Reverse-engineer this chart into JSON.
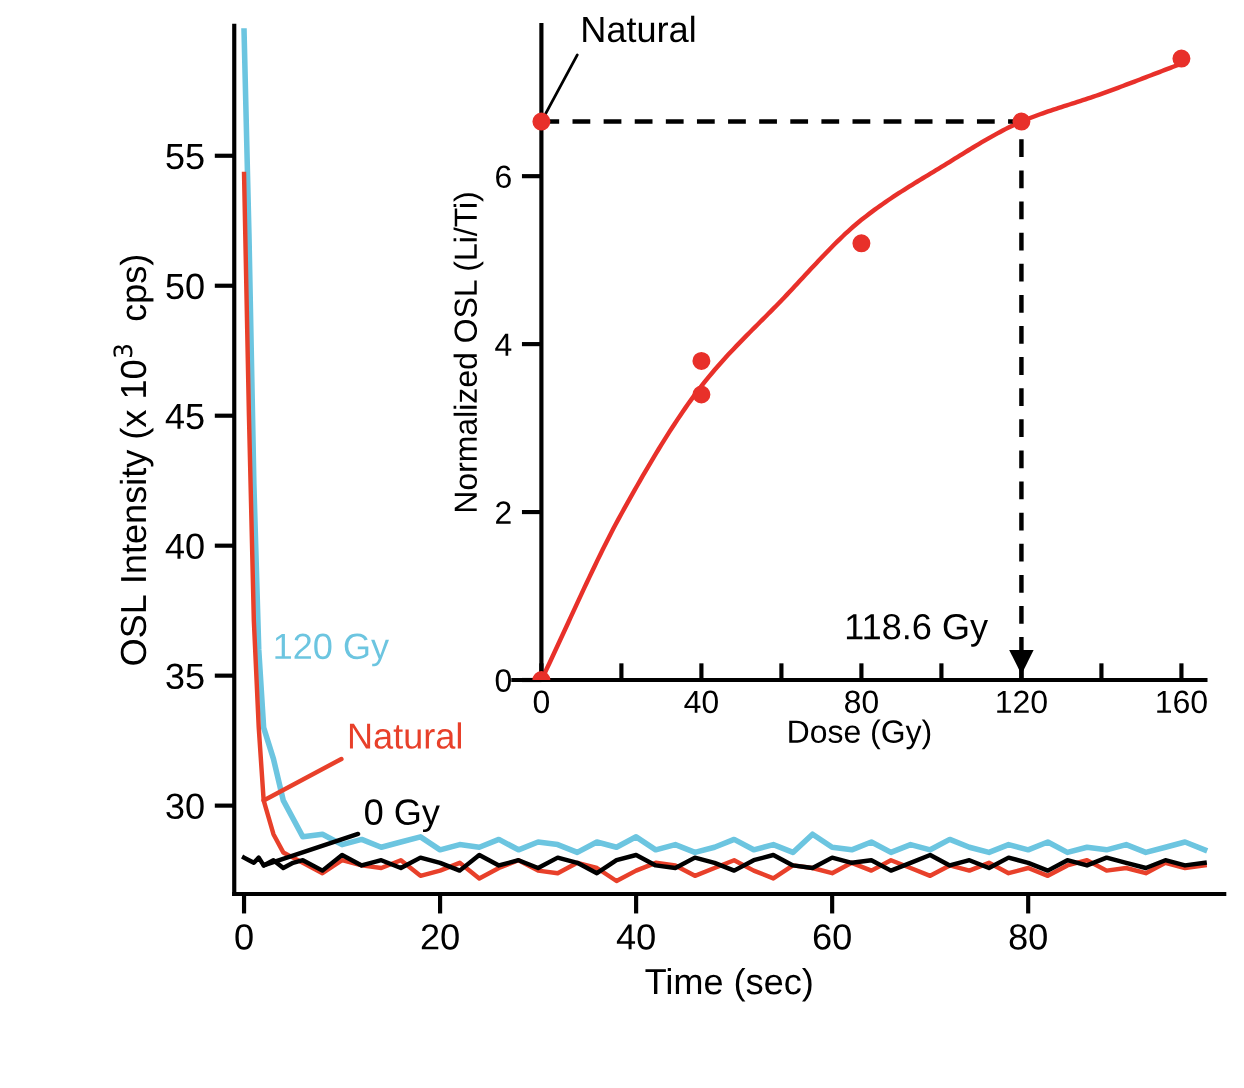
{
  "chart_data": [
    {
      "type": "line",
      "xlabel": "Time (sec)",
      "ylabel": "OSL Intensity (x 10$^{3}$  cps)",
      "x": [
        0,
        0.5,
        1,
        1.5,
        2,
        3,
        4,
        5,
        6,
        8,
        10,
        12,
        14,
        16,
        18,
        20,
        22,
        24,
        26,
        28,
        30,
        32,
        34,
        36,
        38,
        40,
        42,
        44,
        46,
        48,
        50,
        52,
        54,
        56,
        58,
        60,
        62,
        64,
        66,
        68,
        70,
        72,
        74,
        76,
        78,
        80,
        82,
        84,
        86,
        88,
        90,
        92,
        94,
        96,
        98
      ],
      "series": [
        {
          "name": "120 Gy",
          "color": "#6cc5e0",
          "values": [
            59.8,
            52,
            42.4,
            36,
            33,
            31.8,
            30.2,
            29.5,
            28.8,
            28.9,
            28.5,
            28.7,
            28.4,
            28.6,
            28.8,
            28.3,
            28.5,
            28.4,
            28.7,
            28.3,
            28.6,
            28.5,
            28.2,
            28.6,
            28.4,
            28.8,
            28.3,
            28.5,
            28.2,
            28.4,
            28.7,
            28.3,
            28.5,
            28.2,
            28.9,
            28.4,
            28.3,
            28.6,
            28.2,
            28.5,
            28.3,
            28.7,
            28.4,
            28.2,
            28.5,
            28.3,
            28.6,
            28.2,
            28.4,
            28.3,
            28.5,
            28.2,
            28.4,
            28.6,
            28.3
          ]
        },
        {
          "name": "Natural",
          "color": "#e8402a",
          "values": [
            54.3,
            45,
            37.1,
            33,
            30.2,
            28.9,
            28.2,
            28.0,
            27.8,
            27.4,
            27.9,
            27.7,
            27.6,
            27.9,
            27.3,
            27.5,
            27.8,
            27.2,
            27.6,
            27.9,
            27.5,
            27.4,
            27.8,
            27.6,
            27.1,
            27.5,
            27.8,
            27.7,
            27.3,
            27.6,
            27.9,
            27.5,
            27.2,
            27.7,
            27.6,
            27.4,
            27.8,
            27.5,
            27.9,
            27.6,
            27.3,
            27.7,
            27.5,
            27.8,
            27.4,
            27.6,
            27.3,
            27.7,
            27.9,
            27.5,
            27.6,
            27.4,
            27.8,
            27.6,
            27.7
          ]
        },
        {
          "name": "0 Gy",
          "color": "#000000",
          "values": [
            28.0,
            27.9,
            27.8,
            28.0,
            27.7,
            27.9,
            27.6,
            27.8,
            27.9,
            27.5,
            28.1,
            27.7,
            27.9,
            27.6,
            28.0,
            27.8,
            27.5,
            28.1,
            27.7,
            27.9,
            27.6,
            28.0,
            27.8,
            27.4,
            27.9,
            28.1,
            27.7,
            27.6,
            28.0,
            27.8,
            27.5,
            27.9,
            28.1,
            27.7,
            27.6,
            28.0,
            27.8,
            27.9,
            27.5,
            27.8,
            28.1,
            27.7,
            27.9,
            27.6,
            28.0,
            27.8,
            27.5,
            27.9,
            27.7,
            28.0,
            27.8,
            27.6,
            27.9,
            27.7,
            27.8
          ]
        }
      ],
      "xlim": [
        -1,
        100
      ],
      "ylim": [
        26.6,
        60
      ],
      "xticks": [
        0,
        20,
        40,
        60,
        80
      ],
      "yticks": [
        30,
        35,
        40,
        45,
        50,
        55
      ],
      "grid": false,
      "legend": false
    },
    {
      "type": "scatter",
      "xlabel": "Dose (Gy)",
      "ylabel": "Normalized OSL (Li/Ti)",
      "series": [
        {
          "type": "scatter",
          "color": "#e8302a",
          "marker": "circle",
          "x": [
            0,
            0,
            40,
            40,
            80,
            120,
            160
          ],
          "values": [
            0,
            6.65,
            3.8,
            3.4,
            5.2,
            6.65,
            7.4
          ]
        },
        {
          "type": "line",
          "color": "#e8302a",
          "x": [
            0,
            20,
            40,
            60,
            80,
            100,
            120,
            140,
            160
          ],
          "values": [
            0,
            1.98,
            3.5,
            4.52,
            5.48,
            6.11,
            6.65,
            6.98,
            7.34
          ]
        },
        {
          "type": "line",
          "color": "#000000",
          "line_style": "dashed",
          "x": [
            0,
            120,
            120
          ],
          "values": [
            6.65,
            6.65,
            0
          ]
        }
      ],
      "annotations": [
        {
          "text": "Natural",
          "x": 0,
          "y": 6.65
        },
        {
          "text": "118.6 Gy",
          "x": 118.6,
          "y": 0
        }
      ],
      "xlim": [
        -7,
        166
      ],
      "ylim": [
        0,
        7.8
      ],
      "xticks": [
        0,
        {
          "value": 20,
          "label": null
        },
        40,
        {
          "value": 60,
          "label": null
        },
        80,
        {
          "value": 100,
          "label": null
        },
        120,
        {
          "value": 140,
          "label": null
        },
        160
      ],
      "yticks": [
        0,
        2,
        4,
        6
      ],
      "grid": false,
      "legend": false
    }
  ]
}
